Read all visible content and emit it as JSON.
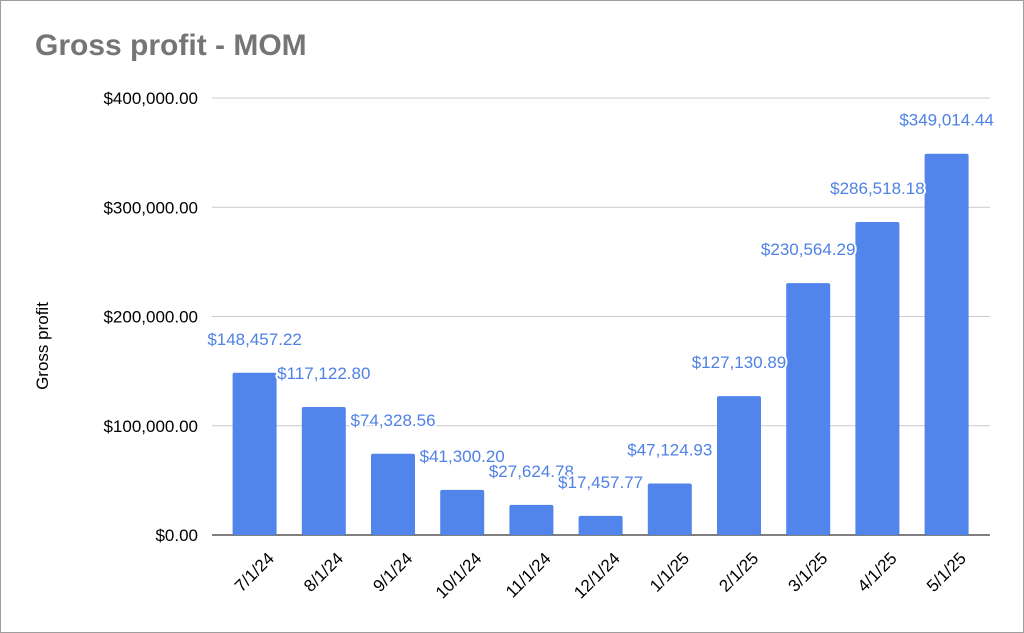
{
  "chart_data": {
    "type": "bar",
    "title": "Gross profit - MOM",
    "xlabel": "",
    "ylabel": "Gross profit",
    "ylim": [
      0,
      400000
    ],
    "yticks": [
      0,
      100000,
      200000,
      300000,
      400000
    ],
    "ytick_labels": [
      "$0.00",
      "$100,000.00",
      "$200,000.00",
      "$300,000.00",
      "$400,000.00"
    ],
    "grid": true,
    "legend": "none",
    "bar_color": "#5185ec",
    "label_color": "#4f81e6",
    "categories": [
      "7/1/24",
      "8/1/24",
      "9/1/24",
      "10/1/24",
      "11/1/24",
      "12/1/24",
      "1/1/25",
      "2/1/25",
      "3/1/25",
      "4/1/25",
      "5/1/25"
    ],
    "values": [
      148457.22,
      117122.8,
      74328.56,
      41300.2,
      27624.78,
      17457.77,
      47124.93,
      127130.89,
      230564.29,
      286518.18,
      349014.44
    ],
    "data_labels": [
      "$148,457.22",
      "$117,122.80",
      "$74,328.56",
      "$41,300.20",
      "$27,624.78",
      "$17,457.77",
      "$47,124.93",
      "$127,130.89",
      "$230,564.29",
      "$286,518.18",
      "$349,014.44"
    ]
  }
}
